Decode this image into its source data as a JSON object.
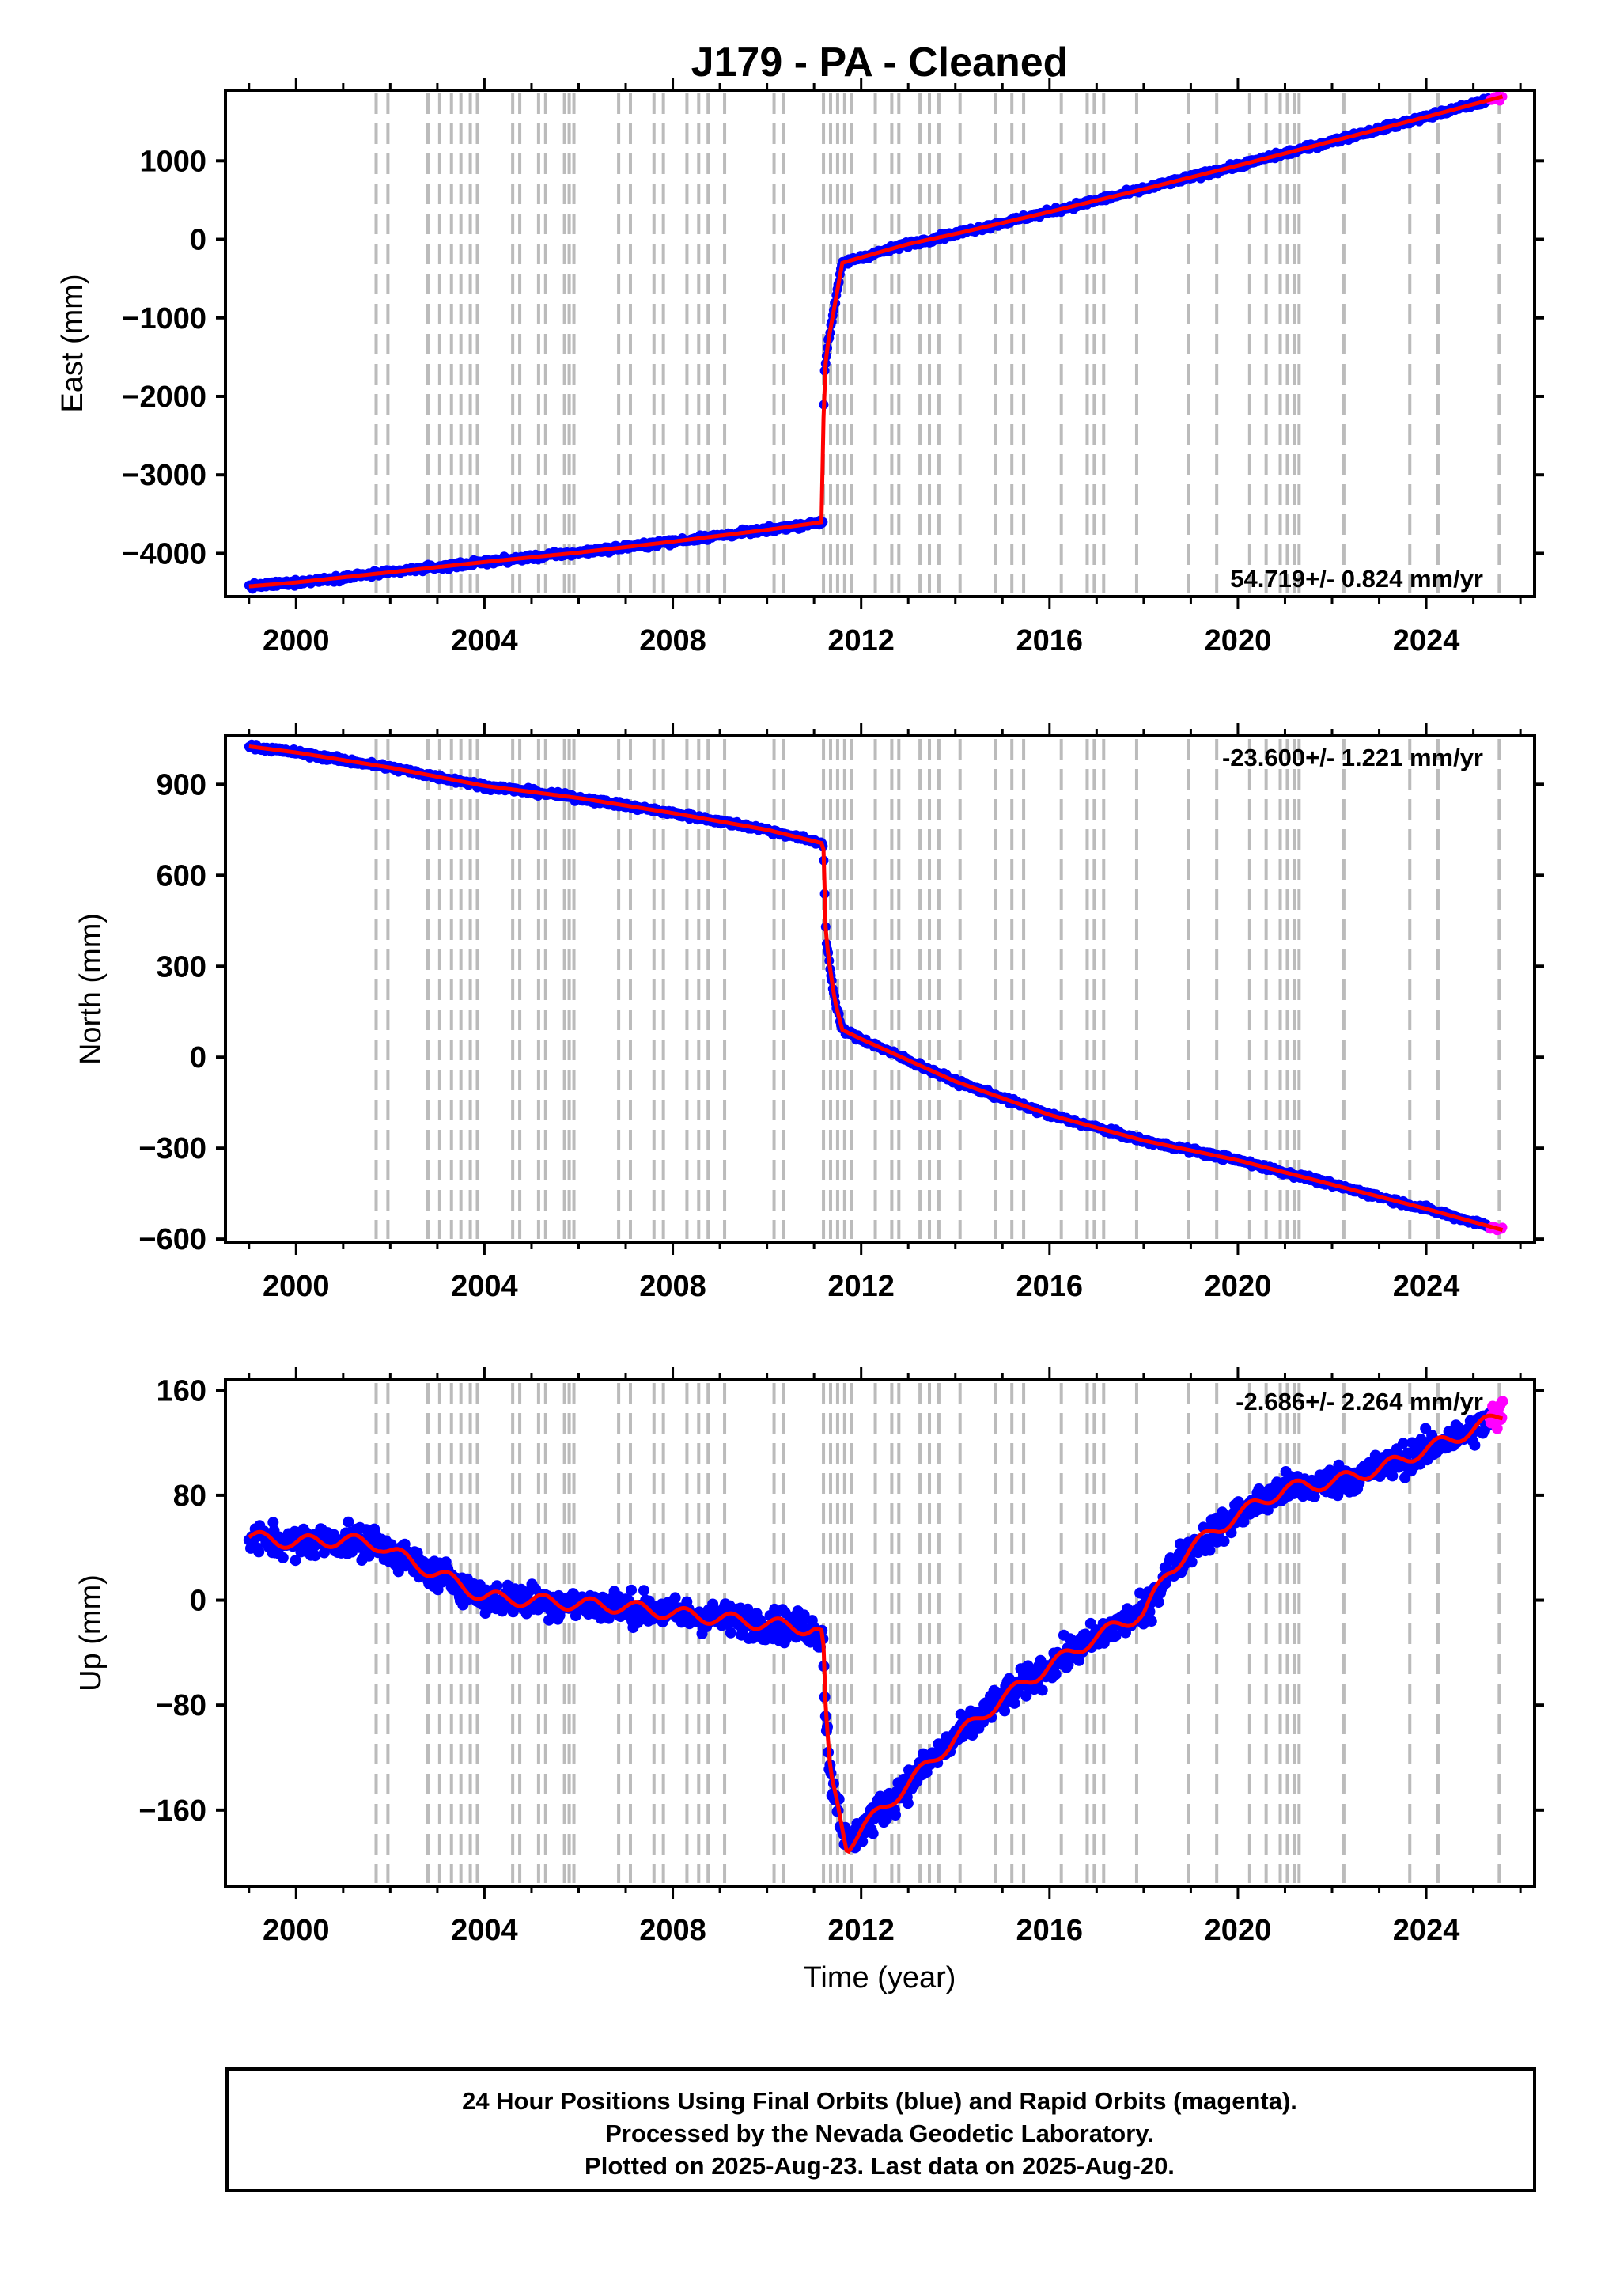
{
  "title": "J179  - PA - Cleaned",
  "footer": {
    "lines": [
      "24 Hour Positions Using Final Orbits (blue) and Rapid Orbits (magenta).",
      "Processed by the Nevada Geodetic Laboratory.",
      "Plotted on 2025-Aug-23. Last data on 2025-Aug-20."
    ]
  },
  "colors": {
    "final_orbits": "#0000ff",
    "rapid_orbits": "#ff00ff",
    "model_fit": "#ff0000",
    "equipment_change_lines": "#bbbbbb"
  },
  "chart_data": [
    {
      "type": "scatter",
      "ylabel": "East (mm)",
      "xlabel": "",
      "xlim": [
        1998.5,
        2026.3
      ],
      "ylim": [
        -4550,
        1900
      ],
      "xticks": [
        2000,
        2004,
        2008,
        2012,
        2016,
        2020,
        2024
      ],
      "yticks": [
        -4000,
        -3000,
        -2000,
        -1000,
        0,
        1000
      ],
      "yticklabels": [
        "−4000",
        "−3000",
        "−2000",
        "−1000",
        "0",
        "1000"
      ],
      "rate_label": "54.719+/- 0.824 mm/yr",
      "rate_label_position": "bottom-right",
      "series": [
        {
          "x": [
            1999.0,
            2000.0,
            2002.0,
            2004.0,
            2006.0,
            2008.0,
            2010.0,
            2011.19,
            2011.2,
            2011.22,
            2011.26,
            2011.3,
            2011.45,
            2011.6,
            2012.0,
            2013.0,
            2014.0,
            2016.0,
            2018.0,
            2020.0,
            2022.0,
            2024.0,
            2025.62
          ],
          "y": [
            -4420,
            -4370,
            -4240,
            -4110,
            -3990,
            -3850,
            -3700,
            -3600,
            -2300,
            -1700,
            -1500,
            -1300,
            -800,
            -300,
            -230,
            -60,
            70,
            350,
            640,
            940,
            1250,
            1560,
            1820
          ]
        }
      ],
      "grid": false
    },
    {
      "type": "scatter",
      "ylabel": "North (mm)",
      "xlabel": "",
      "xlim": [
        1998.5,
        2026.3
      ],
      "ylim": [
        -610,
        1060
      ],
      "xticks": [
        2000,
        2004,
        2008,
        2012,
        2016,
        2020,
        2024
      ],
      "yticks": [
        -600,
        -300,
        0,
        300,
        600,
        900
      ],
      "yticklabels": [
        "−600",
        "−300",
        "0",
        "300",
        "600",
        "900"
      ],
      "rate_label": "-23.600+/- 1.221 mm/yr",
      "rate_label_position": "top-right",
      "series": [
        {
          "x": [
            1999.0,
            2000.0,
            2002.0,
            2004.0,
            2006.0,
            2008.0,
            2010.0,
            2011.19,
            2011.2,
            2011.25,
            2011.35,
            2011.45,
            2011.6,
            2012.0,
            2013.0,
            2014.0,
            2016.0,
            2018.0,
            2020.0,
            2022.0,
            2024.0,
            2025.62
          ],
          "y": [
            1025,
            1005,
            955,
            895,
            855,
            805,
            750,
            705,
            690,
            400,
            280,
            180,
            90,
            60,
            -10,
            -80,
            -190,
            -275,
            -340,
            -420,
            -500,
            -570
          ]
        }
      ],
      "grid": false
    },
    {
      "type": "scatter",
      "ylabel": "Up (mm)",
      "xlabel": "Time (year)",
      "xlim": [
        1998.5,
        2026.3
      ],
      "ylim": [
        -218,
        168
      ],
      "xticks": [
        2000,
        2004,
        2008,
        2012,
        2016,
        2020,
        2024
      ],
      "yticks": [
        -160,
        -80,
        0,
        80,
        160
      ],
      "yticklabels": [
        "−160",
        "−80",
        "0",
        "80",
        "160"
      ],
      "rate_label": "-2.686+/- 2.264 mm/yr",
      "rate_label_position": "top-right",
      "series": [
        {
          "x": [
            1999.0,
            2000.0,
            2001.0,
            2001.8,
            2002.5,
            2003.0,
            2003.5,
            2004.0,
            2005.0,
            2006.0,
            2007.0,
            2008.0,
            2009.0,
            2010.0,
            2011.0,
            2011.19,
            2011.25,
            2011.35,
            2011.5,
            2011.7,
            2012.0,
            2013.0,
            2014.0,
            2015.0,
            2016.0,
            2017.0,
            2017.5,
            2018.0,
            2018.5,
            2019.0,
            2020.0,
            2021.0,
            2022.0,
            2023.0,
            2024.0,
            2025.0,
            2025.62
          ],
          "y": [
            48,
            44,
            46,
            42,
            28,
            20,
            12,
            2,
            0,
            -3,
            -5,
            -10,
            -14,
            -18,
            -22,
            -28,
            -90,
            -135,
            -155,
            -188,
            -175,
            -140,
            -105,
            -75,
            -50,
            -28,
            -18,
            -10,
            20,
            40,
            65,
            85,
            90,
            100,
            115,
            130,
            142
          ]
        }
      ],
      "grid": false
    }
  ],
  "equipment_change_epochs": [
    2001.7,
    2001.95,
    2002.8,
    2003.05,
    2003.3,
    2003.5,
    2003.7,
    2003.85,
    2004.6,
    2004.75,
    2005.15,
    2005.3,
    2005.7,
    2005.8,
    2005.9,
    2006.85,
    2007.1,
    2007.6,
    2007.8,
    2008.3,
    2008.55,
    2008.75,
    2009.1,
    2010.15,
    2010.35,
    2011.2,
    2011.35,
    2011.5,
    2011.65,
    2011.8,
    2012.3,
    2012.65,
    2012.8,
    2013.25,
    2013.45,
    2013.65,
    2014.1,
    2014.85,
    2015.2,
    2015.45,
    2016.25,
    2016.8,
    2016.95,
    2017.15,
    2017.85,
    2018.95,
    2019.55,
    2020.25,
    2020.6,
    2020.9,
    2021.05,
    2021.2,
    2021.3,
    2022.25,
    2023.65,
    2024.25,
    2025.55
  ]
}
